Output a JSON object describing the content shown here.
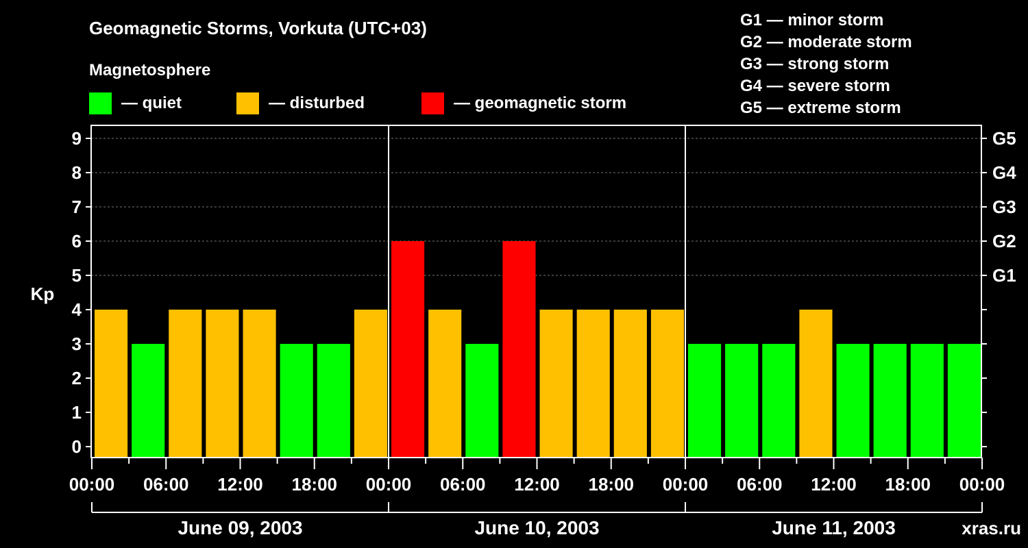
{
  "chart_data": {
    "type": "bar",
    "title": "Geomagnetic Storms, Vorkuta (UTC+03)",
    "legend_title": "Magnetosphere",
    "legend": [
      {
        "label": "— quiet",
        "color": "#00ff00"
      },
      {
        "label": "— disturbed",
        "color": "#ffc000"
      },
      {
        "label": "— geomagnetic storm",
        "color": "#ff0000"
      }
    ],
    "storm_scale": [
      "G1 — minor storm",
      "G2 — moderate storm",
      "G3 — strong storm",
      "G4 — severe storm",
      "G5 — extreme storm"
    ],
    "ylabel": "Kp",
    "ylim": [
      0,
      9
    ],
    "yticks": [
      "0",
      "1",
      "2",
      "3",
      "4",
      "5",
      "6",
      "7",
      "8",
      "9"
    ],
    "right_ticks": [
      {
        "kp": 5,
        "label": "G1"
      },
      {
        "kp": 6,
        "label": "G2"
      },
      {
        "kp": 7,
        "label": "G3"
      },
      {
        "kp": 8,
        "label": "G4"
      },
      {
        "kp": 9,
        "label": "G5"
      }
    ],
    "xticks": [
      "00:00",
      "06:00",
      "12:00",
      "18:00",
      "00:00",
      "06:00",
      "12:00",
      "18:00",
      "00:00",
      "06:00",
      "12:00",
      "18:00",
      "00:00"
    ],
    "days": [
      "June 09, 2003",
      "June 10, 2003",
      "June 11, 2003"
    ],
    "values": [
      4,
      3,
      4,
      4,
      4,
      3,
      3,
      4,
      6,
      4,
      3,
      6,
      4,
      4,
      4,
      4,
      3,
      3,
      3,
      4,
      3,
      3,
      3,
      3
    ],
    "grid": true
  },
  "watermark": "xras.ru"
}
